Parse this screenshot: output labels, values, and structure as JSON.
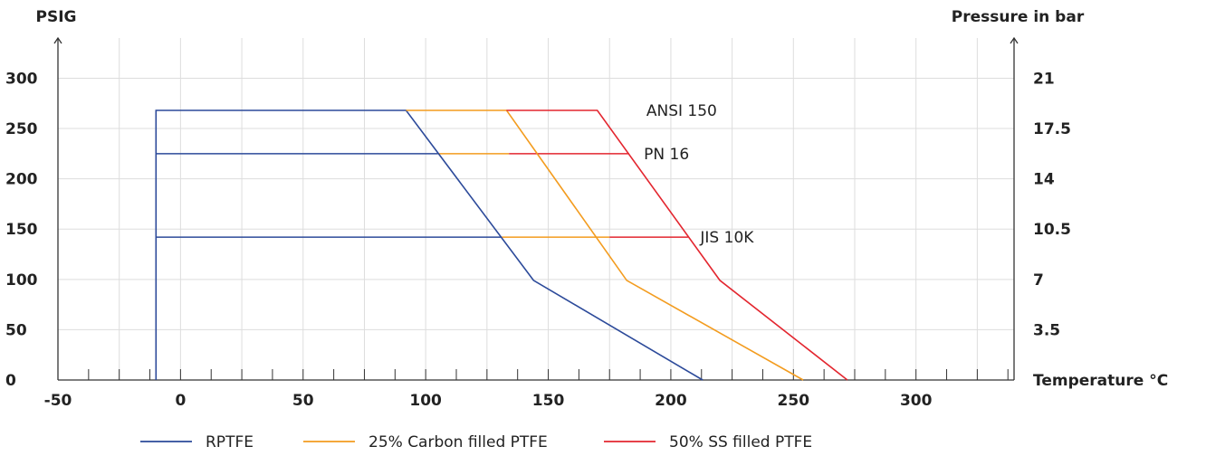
{
  "chart_data": {
    "type": "line",
    "left_axis_label": "PSIG",
    "right_axis_label": "Pressure in bar",
    "x_axis_label": "Temperature °C",
    "xlim": [
      -50,
      340
    ],
    "ylim": [
      0,
      340
    ],
    "x_ticks": [
      "-50",
      "0",
      "50",
      "100",
      "150",
      "200",
      "250",
      "300"
    ],
    "y_ticks_left": [
      "0",
      "50",
      "100",
      "150",
      "200",
      "250",
      "300"
    ],
    "y_ticks_right": [
      {
        "value": 50,
        "label": "3.5"
      },
      {
        "value": 100,
        "label": "7"
      },
      {
        "value": 150,
        "label": "10.5"
      },
      {
        "value": 200,
        "label": "14"
      },
      {
        "value": 250,
        "label": "17.5"
      },
      {
        "value": 300,
        "label": "21"
      }
    ],
    "grid": true,
    "series": [
      {
        "name": "RPTFE",
        "color": "#2c4a9a"
      },
      {
        "name": "25% Carbon filled PTFE",
        "color": "#f39c1f"
      },
      {
        "name": "50% SS filled PTFE",
        "color": "#e3262f"
      }
    ],
    "curves": [
      {
        "series": 0,
        "points": [
          [
            -10,
            0
          ],
          [
            -10,
            268
          ],
          [
            92,
            268
          ],
          [
            144,
            99
          ],
          [
            213,
            0
          ]
        ]
      },
      {
        "series": 1,
        "points": [
          [
            92,
            268
          ],
          [
            133,
            268
          ],
          [
            182,
            99
          ],
          [
            254,
            0
          ]
        ]
      },
      {
        "series": 2,
        "points": [
          [
            133,
            268
          ],
          [
            170,
            268
          ],
          [
            220,
            99
          ],
          [
            272,
            0
          ]
        ]
      }
    ],
    "limit_lines": [
      {
        "label": "ANSI 150",
        "y": 268,
        "label_x": 190,
        "segments": []
      },
      {
        "label": "PN 16",
        "y": 225,
        "label_x": 189,
        "segments": [
          {
            "series": 0,
            "x": [
              -10,
              105
            ]
          },
          {
            "series": 1,
            "x": [
              105,
              134
            ]
          },
          {
            "series": 2,
            "x": [
              134,
              183
            ]
          }
        ]
      },
      {
        "label": "JIS 10K",
        "y": 142,
        "label_x": 212,
        "segments": [
          {
            "series": 0,
            "x": [
              -10,
              131
            ]
          },
          {
            "series": 1,
            "x": [
              131,
              175
            ]
          },
          {
            "series": 2,
            "x": [
              175,
              207
            ]
          }
        ]
      }
    ],
    "legend_position": "bottom-center"
  }
}
